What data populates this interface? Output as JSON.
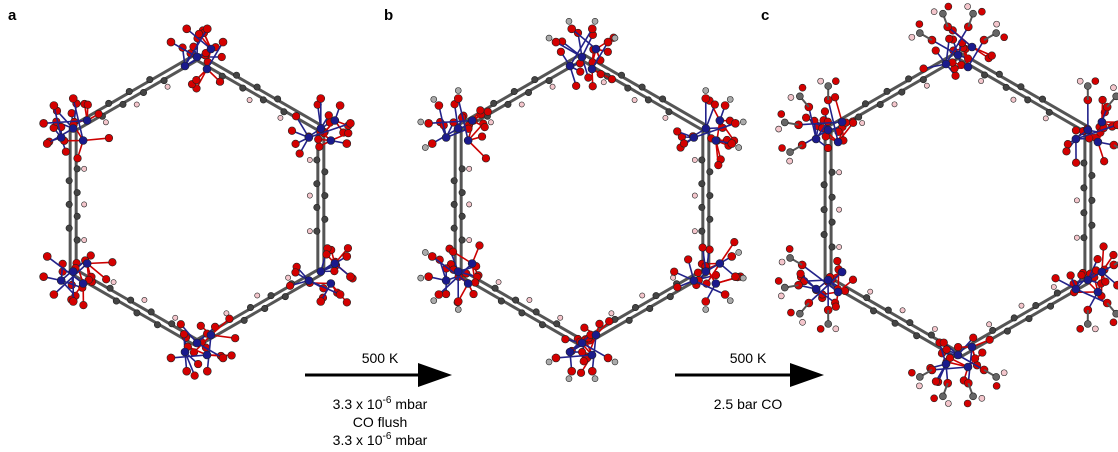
{
  "panels": [
    {
      "label": "a"
    },
    {
      "label": "b"
    },
    {
      "label": "c"
    }
  ],
  "arrows": [
    {
      "top": "500 K",
      "lines": [
        {
          "base": "3.3 x 10",
          "sup": "-6",
          "unit": "mbar"
        },
        {
          "text": "CO flush"
        },
        {
          "base": "3.3 x 10",
          "sup": "-6",
          "unit": "mbar"
        }
      ]
    },
    {
      "top": "500 K",
      "lines": [
        {
          "text": "2.5 bar CO"
        }
      ]
    }
  ]
}
